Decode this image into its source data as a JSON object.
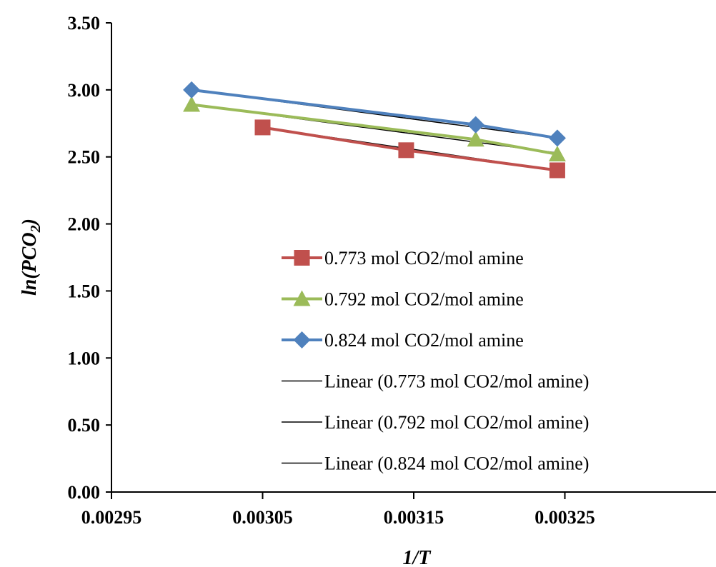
{
  "chart_data": {
    "type": "scatter",
    "xlabel": "1/T",
    "ylabel_main": "ln(PCO",
    "ylabel_sub": "2",
    "ylabel_close": ")",
    "xlim": [
      0.00295,
      0.00335
    ],
    "ylim": [
      0.0,
      3.5
    ],
    "x_ticks": [
      "0.00295",
      "0.00305",
      "0.00315",
      "0.00325"
    ],
    "x_tick_values": [
      0.00295,
      0.00305,
      0.00315,
      0.00325
    ],
    "y_ticks": [
      "0.00",
      "0.50",
      "1.00",
      "1.50",
      "2.00",
      "2.50",
      "3.00",
      "3.50"
    ],
    "y_tick_values": [
      0.0,
      0.5,
      1.0,
      1.5,
      2.0,
      2.5,
      3.0,
      3.5
    ],
    "grid": false,
    "legend_position": "center-right",
    "series": [
      {
        "name": "0.773 mol CO2/mol amine",
        "marker": "square",
        "color": "#C0504D",
        "x": [
          0.00305,
          0.003145,
          0.003245
        ],
        "y": [
          2.72,
          2.55,
          2.4
        ]
      },
      {
        "name": "0.792 mol CO2/mol amine",
        "marker": "triangle",
        "color": "#9BBB59",
        "x": [
          0.003003,
          0.003191,
          0.003245
        ],
        "y": [
          2.89,
          2.63,
          2.52
        ]
      },
      {
        "name": "0.824 mol CO2/mol amine",
        "marker": "diamond",
        "color": "#4F81BD",
        "x": [
          0.003003,
          0.003191,
          0.003245
        ],
        "y": [
          3.0,
          2.74,
          2.64
        ]
      }
    ],
    "trendlines": [
      {
        "name": "Linear (0.773 mol CO2/mol amine)",
        "color": "#000000",
        "x": [
          0.00305,
          0.003245
        ],
        "y": [
          2.72,
          2.4
        ]
      },
      {
        "name": "Linear (0.792 mol CO2/mol amine)",
        "color": "#000000",
        "x": [
          0.003003,
          0.003245
        ],
        "y": [
          2.89,
          2.53
        ]
      },
      {
        "name": "Linear (0.824 mol CO2/mol amine)",
        "color": "#000000",
        "x": [
          0.003003,
          0.003245
        ],
        "y": [
          3.0,
          2.64
        ]
      }
    ]
  }
}
